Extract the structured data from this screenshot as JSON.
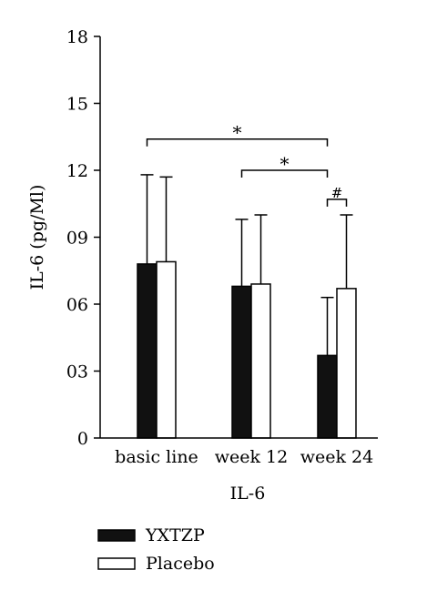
{
  "chart_data": {
    "type": "bar",
    "xlabel": "IL-6",
    "ylabel": "IL-6 (pg/Ml)",
    "ylim": [
      0,
      18
    ],
    "yticks": [
      {
        "value": 0,
        "label": "0"
      },
      {
        "value": 3,
        "label": "03"
      },
      {
        "value": 6,
        "label": "06"
      },
      {
        "value": 9,
        "label": "09"
      },
      {
        "value": 12,
        "label": "12"
      },
      {
        "value": 15,
        "label": "15"
      },
      {
        "value": 18,
        "label": "18"
      }
    ],
    "categories": [
      "basic line",
      "week 12",
      "week 24"
    ],
    "series": [
      {
        "name": "YXTZP",
        "fill": "#111111",
        "values": [
          7.8,
          6.8,
          3.7
        ],
        "errors": [
          4.0,
          3.0,
          2.6
        ]
      },
      {
        "name": "Placebo",
        "fill": "#ffffff",
        "values": [
          7.9,
          6.9,
          6.7
        ],
        "errors": [
          3.8,
          3.1,
          3.3
        ]
      }
    ],
    "legend": "bottom-left",
    "grid": false,
    "annotations": [
      {
        "label": "*",
        "from_category": 0,
        "to_category": 2,
        "y": 13.4
      },
      {
        "label": "*",
        "from_category": 1,
        "to_category": 2,
        "y": 12.0
      },
      {
        "label": "#",
        "from_category": 2,
        "to_category": 2,
        "y": 10.7
      }
    ]
  }
}
